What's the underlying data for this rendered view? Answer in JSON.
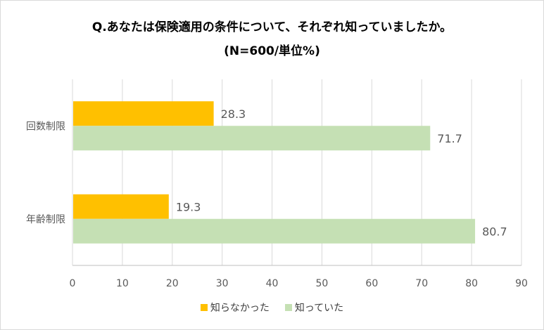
{
  "chart_data": {
    "type": "bar",
    "orientation": "horizontal",
    "title": "Q.あなたは保険適用の条件について、それぞれ知っていましたか。",
    "subtitle": "(N=600/単位%)",
    "categories": [
      "回数制限",
      "年齢制限"
    ],
    "series": [
      {
        "name": "知らなかった",
        "color": "#ffc000",
        "values": [
          28.3,
          19.3
        ]
      },
      {
        "name": "知っていた",
        "color": "#c5e0b4",
        "values": [
          71.7,
          80.7
        ]
      }
    ],
    "xlim": [
      0,
      90
    ],
    "xticks": [
      0,
      10,
      20,
      30,
      40,
      50,
      60,
      70,
      80,
      90
    ],
    "grid": true,
    "legend": "bottom"
  }
}
